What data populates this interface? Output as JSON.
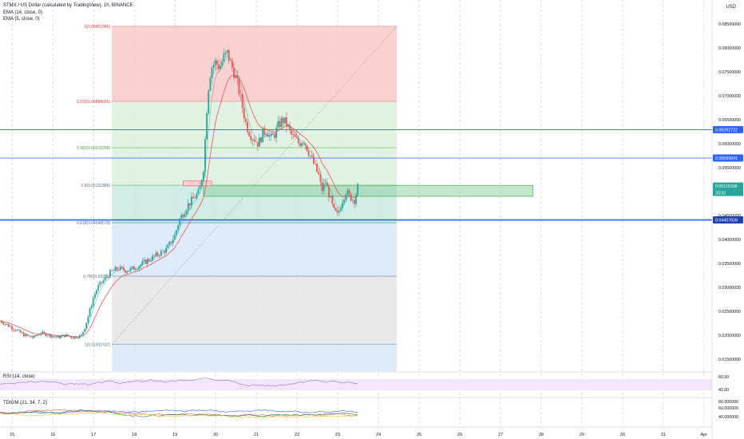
{
  "header": {
    "title": "STMX / US Dollar (calculated by TradingView), 1h, BINANCE",
    "ema14": "EMA (14, close, 0)",
    "ema5": "EMA (5, close, 0)"
  },
  "indicators": {
    "rsi_label": "RSI (14, close)",
    "tdi_label": "TDIGM (21, 34, 7, 2)"
  },
  "axis": {
    "unit": "USD",
    "yticks": [
      "0.08500000",
      "0.08000000",
      "0.07500000",
      "0.07000000",
      "0.06500000",
      "0.06000000",
      "0.05500000",
      "0.04500000",
      "0.04000000",
      "0.03500000",
      "0.03000000",
      "0.02500000",
      "0.02000000",
      "0.01500000"
    ],
    "xticks": [
      "15",
      "16",
      "17",
      "18",
      "19",
      "20",
      "21",
      "22",
      "23",
      "24",
      "25",
      "26",
      "27",
      "28",
      "29",
      "30",
      "31",
      "Apr"
    ],
    "rsi_ticks": [
      "80.00",
      "40.00"
    ],
    "tdi_ticks": [
      "80.000000",
      "60.000000",
      "40.000000"
    ]
  },
  "badges": {
    "level_1": "0.06292722",
    "level_2": "0.05699941",
    "level_3": "0.04407828",
    "last_price": "0.05115336",
    "countdown": "20:32"
  },
  "colors": {
    "bull": "#26a69a",
    "bear": "#ef5350",
    "hline": "#2962ff",
    "fib_red": "#f7c5c5",
    "fib_green": "#d9efdc",
    "fib_teal": "#c5e6e0",
    "fib_blue": "#d6e6fa",
    "fib_gray": "#e3e3e3",
    "rsi_band": "#f3e5fb"
  },
  "chart_data": {
    "type": "candlestick",
    "title": "STMX / US Dollar (calculated by TradingView), 1h, BINANCE",
    "price_range": [
      0.0125,
      0.09
    ],
    "x_range_days": [
      14.7,
      32.2
    ],
    "fib_levels": [
      {
        "label": "0(0.08451845)",
        "ratio": 0,
        "price": 0.08451845
      },
      {
        "label": "0.236(0.06884026)",
        "ratio": 0.236,
        "price": 0.06884026
      },
      {
        "label": "0.382(0.05915298)",
        "ratio": 0.382,
        "price": 0.05915298
      },
      {
        "label": "0.5(0.05131886)",
        "ratio": 0.5,
        "price": 0.05131886
      },
      {
        "label": "0.618(0.04348579)",
        "ratio": 0.618,
        "price": 0.04348579
      },
      {
        "label": "0.786(0.03232)",
        "ratio": 0.786,
        "price": 0.03232
      },
      {
        "label": "1(0.01811932)",
        "ratio": 1,
        "price": 0.01811932
      }
    ],
    "fib_x_days": [
      17.45,
      24.45
    ],
    "horizontal_lines": [
      0.06292722,
      0.05699941,
      0.04407828
    ],
    "zone_rect": {
      "x": [
        19.7,
        27.8
      ],
      "price": [
        0.049,
        0.0513
      ]
    },
    "trendline": {
      "from": [
        17.45,
        0.01811932
      ],
      "to": [
        24.45,
        0.08451845
      ]
    },
    "last_price": 0.05115336,
    "close_points": [
      [
        14.7,
        0.023
      ],
      [
        14.9,
        0.022
      ],
      [
        15.1,
        0.021
      ],
      [
        15.3,
        0.02
      ],
      [
        15.5,
        0.0195
      ],
      [
        15.7,
        0.0205
      ],
      [
        15.9,
        0.02
      ],
      [
        16.1,
        0.0195
      ],
      [
        16.3,
        0.02
      ],
      [
        16.5,
        0.0195
      ],
      [
        16.7,
        0.02
      ],
      [
        16.8,
        0.022
      ],
      [
        16.9,
        0.025
      ],
      [
        17.0,
        0.028
      ],
      [
        17.1,
        0.03
      ],
      [
        17.2,
        0.031
      ],
      [
        17.3,
        0.032
      ],
      [
        17.4,
        0.033
      ],
      [
        17.6,
        0.034
      ],
      [
        17.8,
        0.0335
      ],
      [
        18.0,
        0.034
      ],
      [
        18.2,
        0.035
      ],
      [
        18.4,
        0.036
      ],
      [
        18.6,
        0.037
      ],
      [
        18.8,
        0.038
      ],
      [
        19.0,
        0.041
      ],
      [
        19.1,
        0.044
      ],
      [
        19.3,
        0.047
      ],
      [
        19.5,
        0.049
      ],
      [
        19.6,
        0.05
      ],
      [
        19.7,
        0.055
      ],
      [
        19.75,
        0.062
      ],
      [
        19.8,
        0.07
      ],
      [
        19.85,
        0.074
      ],
      [
        19.9,
        0.076
      ],
      [
        20.0,
        0.077
      ],
      [
        20.1,
        0.076
      ],
      [
        20.2,
        0.078
      ],
      [
        20.3,
        0.079
      ],
      [
        20.35,
        0.077
      ],
      [
        20.45,
        0.075
      ],
      [
        20.55,
        0.072
      ],
      [
        20.65,
        0.068
      ],
      [
        20.75,
        0.064
      ],
      [
        20.85,
        0.062
      ],
      [
        20.95,
        0.061
      ],
      [
        21.05,
        0.06
      ],
      [
        21.15,
        0.062
      ],
      [
        21.25,
        0.063
      ],
      [
        21.35,
        0.061
      ],
      [
        21.45,
        0.062
      ],
      [
        21.55,
        0.064
      ],
      [
        21.65,
        0.065
      ],
      [
        21.75,
        0.064
      ],
      [
        21.85,
        0.062
      ],
      [
        21.95,
        0.061
      ],
      [
        22.05,
        0.06
      ],
      [
        22.15,
        0.061
      ],
      [
        22.25,
        0.059
      ],
      [
        22.35,
        0.057
      ],
      [
        22.45,
        0.055
      ],
      [
        22.55,
        0.053
      ],
      [
        22.6,
        0.05
      ],
      [
        22.7,
        0.052
      ],
      [
        22.8,
        0.049
      ],
      [
        22.9,
        0.046
      ],
      [
        23.0,
        0.045
      ],
      [
        23.1,
        0.048
      ],
      [
        23.2,
        0.05
      ],
      [
        23.3,
        0.049
      ],
      [
        23.4,
        0.048
      ],
      [
        23.5,
        0.0512
      ]
    ]
  }
}
